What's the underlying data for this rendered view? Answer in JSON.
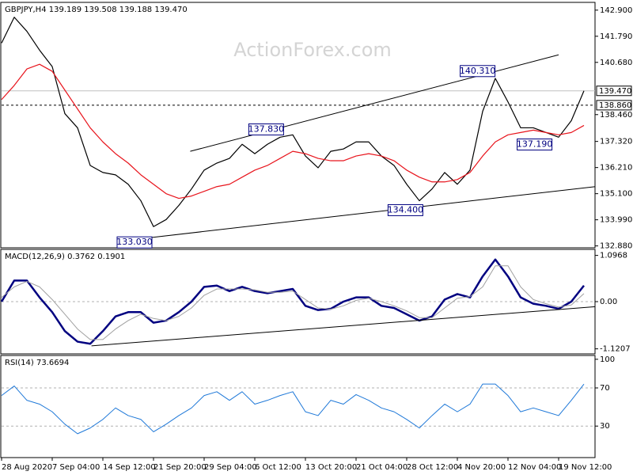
{
  "chart_data": [
    {
      "type": "line",
      "title": "GBPJPY,H4  139.189 139.508 139.188 139.470",
      "watermark": "ActionForex.com",
      "ylim": [
        132.8,
        143.23
      ],
      "yticks": [
        {
          "value": 142.9,
          "label": "142.900"
        },
        {
          "value": 141.79,
          "label": "141.790"
        },
        {
          "value": 140.68,
          "label": "140.680"
        },
        {
          "value": 138.46,
          "label": "138.460"
        },
        {
          "value": 137.32,
          "label": "137.320"
        },
        {
          "value": 136.21,
          "label": "136.210"
        },
        {
          "value": 135.1,
          "label": "135.100"
        },
        {
          "value": 133.99,
          "label": "133.990"
        },
        {
          "value": 132.88,
          "label": "132.880"
        }
      ],
      "series": [
        {
          "color": "#000000",
          "values": [
            141.5,
            142.6,
            142.0,
            141.2,
            140.5,
            138.5,
            137.9,
            136.3,
            136.0,
            135.9,
            135.5,
            134.8,
            133.7,
            134.0,
            134.6,
            135.3,
            136.1,
            136.4,
            136.6,
            137.2,
            136.8,
            137.2,
            137.5,
            137.6,
            136.7,
            136.2,
            136.9,
            137.0,
            137.3,
            137.3,
            136.7,
            136.3,
            135.5,
            134.8,
            135.3,
            136.0,
            135.5,
            136.1,
            138.6,
            140.0,
            139.0,
            137.9,
            137.9,
            137.7,
            137.5,
            138.2,
            139.47
          ]
        },
        {
          "color": "#e8141c",
          "values": [
            139.1,
            139.7,
            140.4,
            140.6,
            140.3,
            139.5,
            138.7,
            137.9,
            137.3,
            136.8,
            136.4,
            135.9,
            135.5,
            135.1,
            134.9,
            135.0,
            135.2,
            135.4,
            135.5,
            135.8,
            136.1,
            136.3,
            136.6,
            136.9,
            136.8,
            136.6,
            136.5,
            136.5,
            136.7,
            136.8,
            136.7,
            136.5,
            136.1,
            135.8,
            135.6,
            135.6,
            135.7,
            136.0,
            136.7,
            137.3,
            137.6,
            137.7,
            137.8,
            137.7,
            137.6,
            137.7,
            138.0
          ]
        }
      ],
      "trendlines": [
        {
          "x": [
            14.9,
            44
          ],
          "y": [
            136.9,
            141.0
          ]
        },
        {
          "x": [
            11.7,
            46.9
          ],
          "y": [
            133.23,
            135.4
          ]
        }
      ],
      "levels": [
        {
          "value": 139.47,
          "label": "139.470",
          "style": "solid"
        },
        {
          "value": 138.86,
          "label": "138.860",
          "style": "dashed"
        }
      ],
      "annotations": [
        {
          "x": 10.5,
          "value": 133.03,
          "label": "133.030"
        },
        {
          "x": 20.9,
          "value": 137.83,
          "label": "137.830"
        },
        {
          "x": 31.9,
          "value": 134.4,
          "label": "134.400"
        },
        {
          "x": 37.6,
          "value": 140.31,
          "label": "140.310"
        },
        {
          "x": 42.1,
          "value": 137.19,
          "label": "137.190"
        }
      ]
    },
    {
      "type": "line",
      "title": "MACD(12,26,9) 0.3762 0.1901",
      "ylim": [
        -1.24,
        1.24
      ],
      "yticks": [
        1.0968,
        {
          "value": 0,
          "label": "0.00"
        },
        -1.1207
      ],
      "zero_line": true,
      "series": [
        {
          "color": "#000080",
          "width": 2.5,
          "values": [
            0.0,
            0.5,
            0.5,
            0.1,
            -0.25,
            -0.7,
            -0.95,
            -1.0,
            -0.7,
            -0.35,
            -0.25,
            -0.25,
            -0.5,
            -0.45,
            -0.25,
            0,
            0.35,
            0.38,
            0.25,
            0.35,
            0.25,
            0.2,
            0.25,
            0.3,
            -0.1,
            -0.2,
            -0.17,
            0,
            0.1,
            0.1,
            -0.1,
            -0.15,
            -0.3,
            -0.45,
            -0.35,
            0.05,
            0.18,
            0.1,
            0.6,
            1.0,
            0.6,
            0.1,
            -0.05,
            -0.1,
            -0.17,
            0,
            0.38
          ]
        },
        {
          "color": "#a0a0a0",
          "width": 1,
          "values": [
            0.1,
            0.35,
            0.48,
            0.35,
            0.05,
            -0.3,
            -0.65,
            -0.9,
            -0.9,
            -0.65,
            -0.45,
            -0.3,
            -0.4,
            -0.45,
            -0.35,
            -0.15,
            0.15,
            0.3,
            0.3,
            0.3,
            0.28,
            0.22,
            0.22,
            0.25,
            0.05,
            -0.15,
            -0.18,
            -0.1,
            0.03,
            0.08,
            0.0,
            -0.1,
            -0.22,
            -0.38,
            -0.38,
            -0.15,
            0.08,
            0.12,
            0.35,
            0.85,
            0.85,
            0.35,
            0.05,
            -0.05,
            -0.13,
            -0.08,
            0.19
          ]
        }
      ],
      "trendlines": [
        {
          "x": [
            7.1,
            46.9
          ],
          "y": [
            -1.05,
            -0.12
          ]
        }
      ]
    },
    {
      "type": "line",
      "title": "RSI(14) 73.6694",
      "ylim": [
        -3,
        104
      ],
      "yticks": [
        100,
        70,
        30
      ],
      "dashed_levels": [
        70,
        30
      ],
      "categories": [
        "28 Aug 2020",
        null,
        null,
        null,
        "7 Sep 04:00",
        null,
        null,
        null,
        "14 Sep 12:00",
        null,
        null,
        null,
        "21 Sep 20:00",
        null,
        null,
        null,
        "29 Sep 04:00",
        null,
        null,
        null,
        "6 Oct 12:00",
        null,
        null,
        null,
        "13 Oct 20:00",
        null,
        null,
        null,
        "21 Oct 04:00",
        null,
        null,
        null,
        "28 Oct 12:00",
        null,
        null,
        null,
        "4 Nov 20:00",
        null,
        null,
        null,
        "12 Nov 04:00",
        null,
        null,
        null,
        "19 Nov 12:00",
        null,
        null
      ],
      "series": [
        {
          "color": "#1e78d8",
          "width": 1,
          "values": [
            62,
            72,
            57,
            53,
            45,
            32,
            22,
            28,
            37,
            49,
            41,
            37,
            24,
            32,
            41,
            49,
            62,
            66,
            57,
            66,
            53,
            57,
            62,
            66,
            45,
            41,
            57,
            53,
            63,
            57,
            49,
            45,
            37,
            28,
            41,
            53,
            45,
            53,
            74,
            74,
            62,
            45,
            49,
            45,
            41,
            57,
            74
          ]
        }
      ]
    }
  ]
}
